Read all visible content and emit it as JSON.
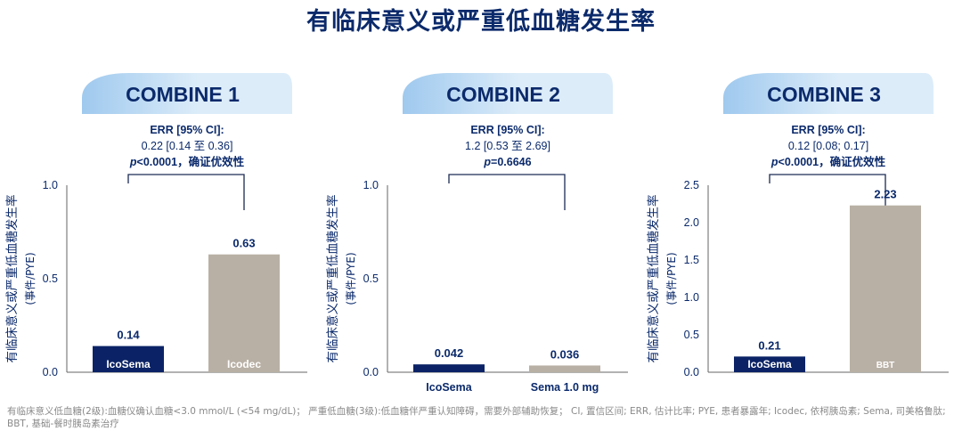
{
  "title": "有临床意义或严重低血糖发生率",
  "footnote": "有临床意义低血糖(2级):血糖仪确认血糖<3.0 mmol/L (<54 mg/dL)； 严重低血糖(3级):低血糖伴严重认知障碍，需要外部辅助恢复； CI, 置信区间; ERR, 估计比率; PYE, 患者暴露年; Icodec, 依柯胰岛素; Sema, 司美格鲁肽; BBT, 基础-餐时胰岛素治疗",
  "colors": {
    "title": "#0b2a6b",
    "navy_bar": "#0b2366",
    "gray_bar": "#b9b0a5",
    "banner_light": "#dcecf9",
    "banner_mid": "#9fc9ee"
  },
  "chart_data": [
    {
      "type": "bar",
      "banner": "COMBINE 1",
      "ylabel": "有临床意义或严重低血糖发生率",
      "ylabel_unit": "(事件/PYE)",
      "ylim": [
        0,
        1.0
      ],
      "yticks": [
        "0.0",
        "0.5",
        "1.0"
      ],
      "categories": [
        "IcoSema",
        "Icodec"
      ],
      "labels_inside": true,
      "values": [
        0.14,
        0.63
      ],
      "value_labels": [
        "0.14",
        "0.63"
      ],
      "bar_colors": [
        "navy",
        "gray"
      ],
      "stat": {
        "err_label": "ERR [95% CI]:",
        "ci_text": "0.22 [0.14 至 0.36]",
        "p_prefix": "p",
        "p_text": "<0.0001，确证优效性"
      }
    },
    {
      "type": "bar",
      "banner": "COMBINE 2",
      "ylabel": "有临床意义或严重低血糖发生率",
      "ylabel_unit": "(事件/PYE)",
      "ylim": [
        0,
        1.0
      ],
      "yticks": [
        "0.0",
        "0.5",
        "1.0"
      ],
      "categories": [
        "IcoSema",
        "Sema 1.0 mg"
      ],
      "labels_inside": false,
      "values": [
        0.042,
        0.036
      ],
      "value_labels": [
        "0.042",
        "0.036"
      ],
      "bar_colors": [
        "navy",
        "gray"
      ],
      "stat": {
        "err_label": "ERR [95% CI]:",
        "ci_text": "1.2 [0.53 至 2.69]",
        "p_prefix": "p",
        "p_text": "=0.6646"
      }
    },
    {
      "type": "bar",
      "banner": "COMBINE 3",
      "ylabel": "有临床意义或严重低血糖发生率",
      "ylabel_unit": "(事件/PYE)",
      "ylim": [
        0,
        2.5
      ],
      "yticks": [
        "0.0",
        "0.5",
        "1.0",
        "1.5",
        "2.0",
        "2.5"
      ],
      "categories": [
        "IcoSema",
        "BBT"
      ],
      "labels_inside": true,
      "values": [
        0.21,
        2.23
      ],
      "value_labels": [
        "0.21",
        "2.23"
      ],
      "bar_colors": [
        "navy",
        "gray"
      ],
      "stat": {
        "err_label": "ERR [95% CI]:",
        "ci_text": "0.12 [0.08; 0.17]",
        "p_prefix": "p",
        "p_text": "<0.0001，确证优效性"
      }
    }
  ]
}
